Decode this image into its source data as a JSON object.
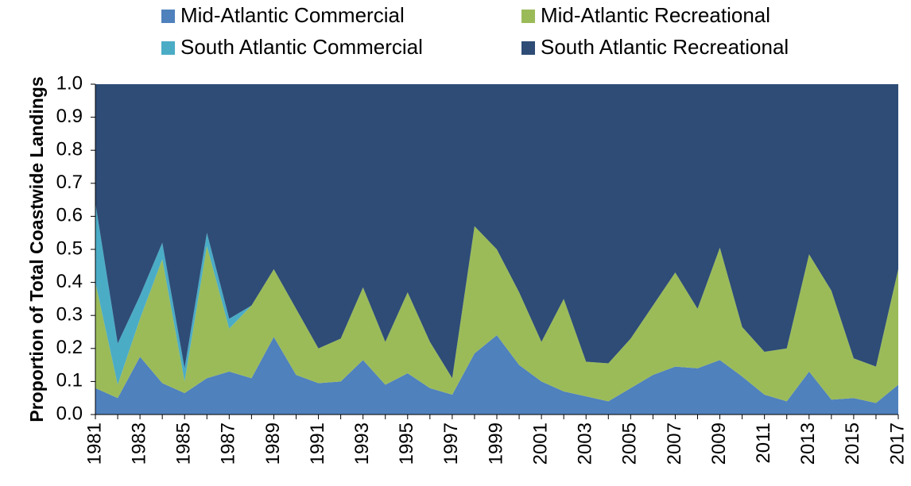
{
  "chart_data": {
    "type": "stacked-area",
    "y_label": "Proportion of Total Coastwide Landings",
    "categories": [
      "1981",
      null,
      "1983",
      null,
      "1985",
      null,
      "1987",
      null,
      "1989",
      null,
      "1991",
      null,
      "1993",
      null,
      "1995",
      null,
      "1997",
      null,
      "1999",
      null,
      "2001",
      null,
      "2003",
      null,
      "2005",
      null,
      "2007",
      null,
      "2009",
      null,
      "2011",
      null,
      "2013",
      null,
      "2015",
      null,
      "2017"
    ],
    "series": [
      {
        "name": "Mid-Atlantic Commercial",
        "color": "#4f81bd",
        "values": [
          0.08,
          0.05,
          0.175,
          0.095,
          0.065,
          0.11,
          0.13,
          0.11,
          0.235,
          0.12,
          0.095,
          0.1,
          0.165,
          0.09,
          0.125,
          0.08,
          0.06,
          0.185,
          0.24,
          0.15,
          0.1,
          0.07,
          0.055,
          0.04,
          0.08,
          0.12,
          0.145,
          0.14,
          0.165,
          0.115,
          0.06,
          0.04,
          0.13,
          0.045,
          0.05,
          0.035,
          0.09
        ]
      },
      {
        "name": "Mid-Atlantic Recreational",
        "color": "#9bbb59",
        "values": [
          0.32,
          0.04,
          0.115,
          0.375,
          0.035,
          0.4,
          0.13,
          0.22,
          0.205,
          0.2,
          0.105,
          0.13,
          0.22,
          0.13,
          0.245,
          0.14,
          0.05,
          0.385,
          0.26,
          0.22,
          0.12,
          0.28,
          0.105,
          0.115,
          0.15,
          0.21,
          0.285,
          0.18,
          0.34,
          0.15,
          0.13,
          0.16,
          0.355,
          0.33,
          0.12,
          0.11,
          0.35
        ]
      },
      {
        "name": "South Atlantic Commercial",
        "color": "#4bacc6",
        "values": [
          0.24,
          0.125,
          0.07,
          0.05,
          0.04,
          0.04,
          0.03,
          0,
          0,
          0,
          0,
          0,
          0,
          0,
          0,
          0,
          0,
          0,
          0,
          0,
          0,
          0,
          0,
          0,
          0,
          0,
          0,
          0,
          0,
          0,
          0,
          0,
          0,
          0,
          0,
          0,
          0
        ]
      },
      {
        "name": "South Atlantic Recreational",
        "color": "#2e4c76",
        "values": [
          0.36,
          0.785,
          0.64,
          0.48,
          0.86,
          0.45,
          0.71,
          0.67,
          0.56,
          0.68,
          0.8,
          0.77,
          0.615,
          0.78,
          0.63,
          0.78,
          0.89,
          0.43,
          0.5,
          0.63,
          0.78,
          0.65,
          0.84,
          0.845,
          0.77,
          0.67,
          0.57,
          0.68,
          0.495,
          0.735,
          0.81,
          0.8,
          0.515,
          0.625,
          0.83,
          0.855,
          0.56
        ]
      }
    ],
    "ylim": [
      0,
      1
    ],
    "yticks": [
      {
        "value": 0,
        "label": "0.0"
      },
      0.1,
      0.2,
      0.3,
      0.4,
      0.5,
      0.6,
      0.7,
      0.8,
      0.9,
      {
        "value": 1,
        "label": "1.0"
      }
    ]
  }
}
